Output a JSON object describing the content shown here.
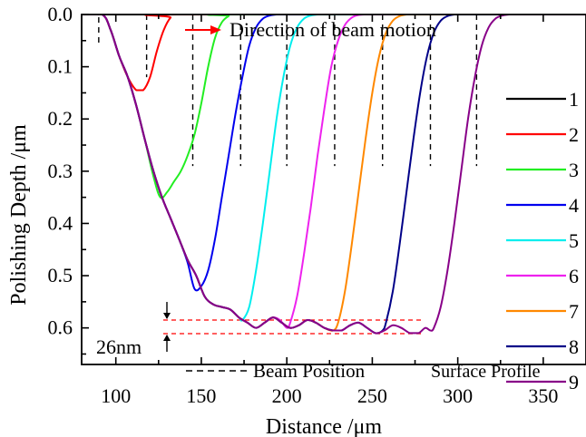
{
  "chart_data": {
    "type": "line",
    "title": "",
    "xlabel": "Distance /μm",
    "ylabel": "Polishing Depth /μm",
    "xlim": [
      80,
      375
    ],
    "ylim": [
      0.0,
      0.67
    ],
    "y_inverted": true,
    "xticks": [
      100,
      150,
      200,
      250,
      300,
      350
    ],
    "yticks": [
      0.0,
      0.1,
      0.2,
      0.3,
      0.4,
      0.5,
      0.6
    ],
    "xtick_labels": [
      "100",
      "150",
      "200",
      "250",
      "300",
      "350"
    ],
    "ytick_labels": [
      "0.0",
      "0.1",
      "0.2",
      "0.3",
      "0.4",
      "0.5",
      "0.6"
    ],
    "grid": false,
    "legend_position": "right",
    "legend_title": "Surface Profile",
    "annotations": {
      "direction_text": "Direction of beam motion",
      "beam_position_text": "Beam Position",
      "depth_diff_text": "26nm",
      "ref_line_depths": [
        0.585,
        0.611
      ]
    },
    "beam_positions": [
      90,
      118,
      145,
      173,
      200,
      228,
      256,
      284,
      311
    ],
    "series": [
      {
        "name": "1",
        "color": "#000000",
        "x": [
          80,
          375
        ],
        "y": [
          0,
          0
        ]
      },
      {
        "name": "2",
        "color": "#ff0000",
        "x": [
          80,
          92,
          97,
          102,
          107,
          112,
          116,
          120,
          124,
          128,
          132,
          136,
          375
        ],
        "y": [
          0,
          0,
          0.03,
          0.08,
          0.12,
          0.145,
          0.145,
          0.12,
          0.07,
          0.03,
          0.006,
          0,
          0
        ]
      },
      {
        "name": "3",
        "color": "#22ee22",
        "x": [
          80,
          92,
          97,
          102,
          107,
          112,
          117,
          122,
          126,
          130,
          134,
          138,
          142,
          146,
          150,
          154,
          158,
          162,
          166,
          170,
          375
        ],
        "y": [
          0,
          0,
          0.03,
          0.08,
          0.12,
          0.175,
          0.24,
          0.31,
          0.35,
          0.34,
          0.32,
          0.3,
          0.27,
          0.23,
          0.17,
          0.1,
          0.045,
          0.015,
          0.003,
          0,
          0
        ]
      },
      {
        "name": "4",
        "color": "#0000ee",
        "x": [
          80,
          92,
          97,
          102,
          107,
          112,
          117,
          122,
          127,
          132,
          137,
          142,
          146,
          150,
          154,
          158,
          162,
          166,
          170,
          174,
          178,
          182,
          186,
          190,
          194,
          198,
          375
        ],
        "y": [
          0,
          0,
          0.03,
          0.08,
          0.12,
          0.175,
          0.24,
          0.3,
          0.35,
          0.39,
          0.43,
          0.475,
          0.525,
          0.52,
          0.49,
          0.43,
          0.35,
          0.27,
          0.19,
          0.12,
          0.06,
          0.025,
          0.008,
          0.002,
          0,
          0,
          0
        ]
      },
      {
        "name": "5",
        "color": "#00eeee",
        "x": [
          80,
          92,
          97,
          102,
          107,
          112,
          117,
          122,
          127,
          132,
          137,
          142,
          147,
          152,
          157,
          162,
          167,
          172,
          174,
          178,
          182,
          186,
          190,
          194,
          198,
          202,
          206,
          210,
          214,
          218,
          222,
          226,
          375
        ],
        "y": [
          0,
          0,
          0.03,
          0.08,
          0.12,
          0.175,
          0.24,
          0.3,
          0.35,
          0.39,
          0.43,
          0.47,
          0.5,
          0.54,
          0.555,
          0.56,
          0.565,
          0.58,
          0.585,
          0.56,
          0.49,
          0.4,
          0.3,
          0.2,
          0.12,
          0.06,
          0.025,
          0.008,
          0.002,
          0,
          0,
          0,
          0
        ]
      },
      {
        "name": "6",
        "color": "#ee22ee",
        "x": [
          80,
          92,
          97,
          102,
          107,
          112,
          117,
          122,
          127,
          132,
          137,
          142,
          147,
          152,
          157,
          162,
          167,
          172,
          177,
          182,
          187,
          192,
          196,
          200,
          202,
          206,
          210,
          214,
          218,
          222,
          226,
          230,
          234,
          238,
          242,
          246,
          250,
          254,
          375
        ],
        "y": [
          0,
          0,
          0.03,
          0.08,
          0.12,
          0.175,
          0.24,
          0.3,
          0.35,
          0.39,
          0.43,
          0.47,
          0.5,
          0.54,
          0.555,
          0.56,
          0.565,
          0.58,
          0.59,
          0.6,
          0.59,
          0.58,
          0.585,
          0.6,
          0.59,
          0.54,
          0.46,
          0.37,
          0.27,
          0.18,
          0.1,
          0.05,
          0.02,
          0.006,
          0.001,
          0,
          0,
          0,
          0
        ]
      },
      {
        "name": "7",
        "color": "#ff8800",
        "x": [
          80,
          92,
          97,
          102,
          107,
          112,
          117,
          122,
          127,
          132,
          137,
          142,
          147,
          152,
          157,
          162,
          167,
          172,
          177,
          182,
          187,
          192,
          197,
          202,
          207,
          212,
          217,
          222,
          227,
          230,
          234,
          238,
          242,
          246,
          250,
          254,
          258,
          262,
          266,
          270,
          274,
          278,
          282,
          375
        ],
        "y": [
          0,
          0,
          0.03,
          0.08,
          0.12,
          0.175,
          0.24,
          0.3,
          0.35,
          0.39,
          0.43,
          0.47,
          0.5,
          0.54,
          0.555,
          0.56,
          0.565,
          0.58,
          0.59,
          0.6,
          0.59,
          0.58,
          0.59,
          0.6,
          0.595,
          0.585,
          0.59,
          0.6,
          0.605,
          0.59,
          0.53,
          0.44,
          0.34,
          0.24,
          0.15,
          0.08,
          0.035,
          0.012,
          0.003,
          0,
          0,
          0,
          0,
          0
        ]
      },
      {
        "name": "8",
        "color": "#000088",
        "x": [
          80,
          92,
          97,
          102,
          107,
          112,
          117,
          122,
          127,
          132,
          137,
          142,
          147,
          152,
          157,
          162,
          167,
          172,
          177,
          182,
          187,
          192,
          197,
          202,
          207,
          212,
          217,
          222,
          227,
          232,
          237,
          242,
          247,
          252,
          256,
          258,
          262,
          266,
          270,
          274,
          278,
          282,
          286,
          290,
          294,
          298,
          302,
          306,
          310,
          375
        ],
        "y": [
          0,
          0,
          0.03,
          0.08,
          0.12,
          0.175,
          0.24,
          0.3,
          0.35,
          0.39,
          0.43,
          0.47,
          0.5,
          0.54,
          0.555,
          0.56,
          0.565,
          0.58,
          0.59,
          0.6,
          0.59,
          0.58,
          0.59,
          0.6,
          0.595,
          0.585,
          0.59,
          0.6,
          0.605,
          0.605,
          0.595,
          0.59,
          0.6,
          0.61,
          0.605,
          0.59,
          0.53,
          0.44,
          0.34,
          0.24,
          0.15,
          0.08,
          0.035,
          0.012,
          0.003,
          0,
          0,
          0,
          0,
          0
        ]
      },
      {
        "name": "9",
        "color": "#880088",
        "x": [
          80,
          92,
          97,
          102,
          107,
          112,
          117,
          122,
          127,
          132,
          137,
          142,
          147,
          152,
          157,
          162,
          167,
          172,
          177,
          182,
          187,
          192,
          197,
          202,
          207,
          212,
          217,
          222,
          227,
          232,
          237,
          242,
          247,
          252,
          257,
          262,
          267,
          272,
          277,
          281,
          284,
          286,
          290,
          294,
          298,
          302,
          306,
          310,
          314,
          318,
          322,
          326,
          330,
          334,
          375
        ],
        "y": [
          0,
          0,
          0.03,
          0.08,
          0.12,
          0.175,
          0.24,
          0.3,
          0.35,
          0.39,
          0.43,
          0.47,
          0.5,
          0.54,
          0.555,
          0.56,
          0.565,
          0.58,
          0.59,
          0.6,
          0.59,
          0.58,
          0.59,
          0.6,
          0.595,
          0.585,
          0.59,
          0.6,
          0.605,
          0.605,
          0.595,
          0.59,
          0.6,
          0.61,
          0.605,
          0.595,
          0.6,
          0.61,
          0.61,
          0.6,
          0.605,
          0.6,
          0.56,
          0.49,
          0.4,
          0.3,
          0.2,
          0.12,
          0.06,
          0.025,
          0.008,
          0.002,
          0,
          0,
          0
        ]
      }
    ]
  }
}
